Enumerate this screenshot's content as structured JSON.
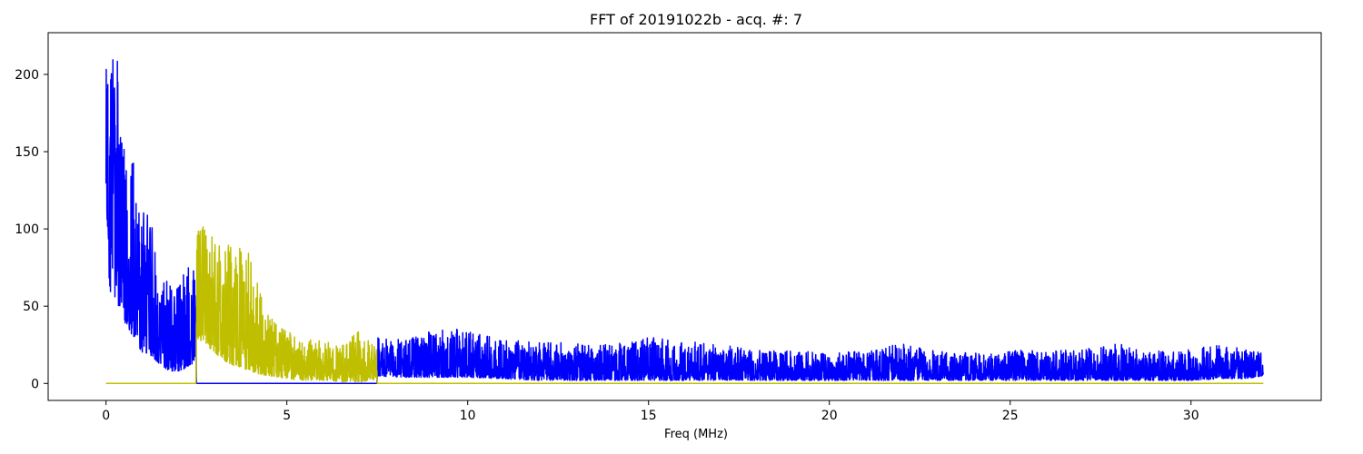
{
  "chart_data": {
    "type": "line",
    "title": "FFT of 20191022b - acq. #: 7",
    "xlabel": "Freq (MHz)",
    "ylabel": "",
    "xlim": [
      -1.6,
      33.6
    ],
    "ylim": [
      -11,
      227
    ],
    "xticks": [
      0,
      5,
      10,
      15,
      20,
      25,
      30
    ],
    "yticks": [
      0,
      50,
      100,
      150,
      200
    ],
    "grid": false,
    "legend": "none",
    "colors": {
      "spectrum": "#0000ff",
      "window": "#bfbf00",
      "axes": "#000000"
    },
    "series": [
      {
        "color": "#0000ff",
        "envelope": [
          [
            0.0,
            120,
            204
          ],
          [
            0.1,
            60,
            200
          ],
          [
            0.25,
            55,
            216
          ],
          [
            0.35,
            50,
            205
          ],
          [
            0.5,
            40,
            160
          ],
          [
            0.75,
            30,
            145
          ],
          [
            1.0,
            20,
            115
          ],
          [
            1.25,
            18,
            105
          ],
          [
            1.5,
            12,
            70
          ],
          [
            1.75,
            8,
            65
          ],
          [
            2.0,
            8,
            65
          ],
          [
            2.25,
            10,
            75
          ],
          [
            2.49,
            15,
            81
          ],
          [
            2.5,
            0,
            0
          ],
          [
            7.49,
            0,
            0
          ],
          [
            7.5,
            5,
            30
          ],
          [
            8.0,
            4,
            28
          ],
          [
            9.0,
            4,
            34
          ],
          [
            10.0,
            4,
            36
          ],
          [
            11.0,
            3,
            28
          ],
          [
            12.0,
            2,
            27
          ],
          [
            13.0,
            2,
            26
          ],
          [
            14.0,
            2,
            25
          ],
          [
            15.0,
            2,
            30
          ],
          [
            16.0,
            2,
            27
          ],
          [
            17.0,
            2,
            26
          ],
          [
            18.0,
            2,
            22
          ],
          [
            19.0,
            2,
            21
          ],
          [
            20.0,
            2,
            20
          ],
          [
            21.0,
            2,
            21
          ],
          [
            22.0,
            2,
            26
          ],
          [
            23.0,
            2,
            21
          ],
          [
            24.0,
            2,
            20
          ],
          [
            25.0,
            2,
            22
          ],
          [
            26.0,
            2,
            21
          ],
          [
            27.0,
            2,
            22
          ],
          [
            28.0,
            2,
            26
          ],
          [
            29.0,
            2,
            21
          ],
          [
            30.0,
            2,
            22
          ],
          [
            30.9,
            3,
            26
          ],
          [
            31.5,
            3,
            22
          ],
          [
            32.0,
            5,
            21
          ]
        ]
      },
      {
        "color": "#bfbf00",
        "envelope": [
          [
            0.0,
            0,
            0
          ],
          [
            2.49,
            0,
            0
          ],
          [
            2.5,
            30,
            100
          ],
          [
            2.75,
            25,
            103
          ],
          [
            3.0,
            20,
            97
          ],
          [
            3.25,
            15,
            90
          ],
          [
            3.5,
            12,
            100
          ],
          [
            3.75,
            10,
            97
          ],
          [
            4.0,
            8,
            80
          ],
          [
            4.25,
            6,
            60
          ],
          [
            4.5,
            5,
            44
          ],
          [
            5.0,
            3,
            35
          ],
          [
            5.5,
            2,
            30
          ],
          [
            6.0,
            2,
            28
          ],
          [
            6.5,
            1,
            25
          ],
          [
            7.0,
            1,
            35
          ],
          [
            7.49,
            2,
            22
          ],
          [
            7.5,
            0,
            0
          ],
          [
            32.0,
            0,
            0
          ]
        ]
      }
    ]
  }
}
